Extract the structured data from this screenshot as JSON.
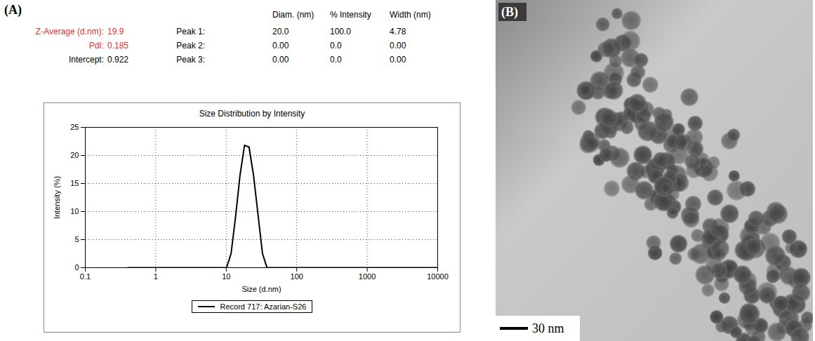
{
  "chart_data": {
    "type": "line",
    "title": "Size Distribution by Intensity",
    "x_label": "Size (d.nm)",
    "y_label": "Intensity (%)",
    "log": "x",
    "grid": true,
    "legend": "bottom",
    "xlim": [
      0.1,
      10000
    ],
    "xticks": [
      0.1,
      1,
      10,
      100,
      1000,
      10000
    ],
    "ylim": [
      0,
      25
    ],
    "yticks": [
      0,
      5,
      10,
      15,
      20,
      25
    ],
    "x": [
      0.4,
      1,
      5,
      10.1,
      11.7,
      13.54,
      15.69,
      18.17,
      21.04,
      24.36,
      28.21,
      32.67,
      37.84,
      43.82,
      100,
      1000,
      10000
    ],
    "series": [
      {
        "name": "Record 717: Azarian-S26",
        "color": "#000000",
        "values": [
          0,
          0,
          0,
          0,
          2.5,
          9,
          16.5,
          21.8,
          21.5,
          16.5,
          9.5,
          2.5,
          0,
          0,
          0,
          0,
          0
        ]
      }
    ]
  },
  "report": {
    "panel_label": "(A)",
    "summary": [
      {
        "label": "Z-Average (d.nm):",
        "value": "19.9",
        "color": "#e0322d"
      },
      {
        "label": "PdI:",
        "value": "0.185",
        "color": "#e0322d"
      },
      {
        "label": "Intercept:",
        "value": "0.922",
        "color": "#000000"
      }
    ],
    "peaks": {
      "columns": [
        "Diam. (nm)",
        "% Intensity",
        "Width (nm)"
      ],
      "rows": [
        {
          "label": "Peak 1:",
          "cells": [
            "20.0",
            "100.0",
            "4.78"
          ]
        },
        {
          "label": "Peak 2:",
          "cells": [
            "0.00",
            "0.0",
            "0.00"
          ]
        },
        {
          "label": "Peak 3:",
          "cells": [
            "0.00",
            "0.0",
            "0.00"
          ]
        }
      ]
    }
  },
  "image": {
    "panel_label": "(B)",
    "scale_bar": "30 nm"
  }
}
